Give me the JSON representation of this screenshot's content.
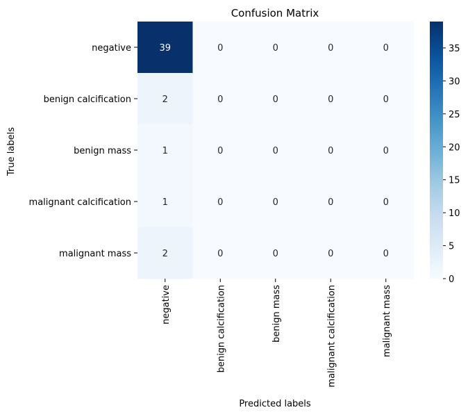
{
  "chart_data": {
    "type": "heatmap",
    "title": "Confusion Matrix",
    "xlabel": "Predicted labels",
    "ylabel": "True labels",
    "row_labels": [
      "negative",
      "benign calcification",
      "benign mass",
      "malignant calcification",
      "malignant mass"
    ],
    "col_labels": [
      "negative",
      "benign calcification",
      "benign mass",
      "malignant calcification",
      "malignant mass"
    ],
    "values": [
      [
        39,
        0,
        0,
        0,
        0
      ],
      [
        2,
        0,
        0,
        0,
        0
      ],
      [
        1,
        0,
        0,
        0,
        0
      ],
      [
        1,
        0,
        0,
        0,
        0
      ],
      [
        2,
        0,
        0,
        0,
        0
      ]
    ],
    "colorbar": {
      "colormap": "Blues",
      "range": [
        0,
        39
      ],
      "ticks": [
        0,
        5,
        10,
        15,
        20,
        25,
        30,
        35
      ]
    }
  }
}
